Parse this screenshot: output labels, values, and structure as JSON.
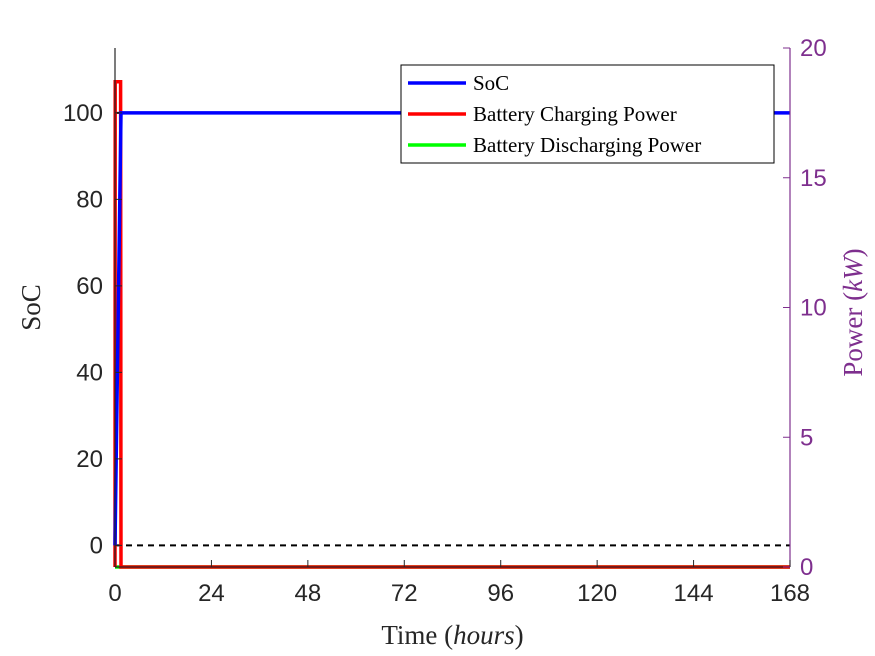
{
  "chart_data": {
    "type": "line",
    "xlabel": "Time",
    "xlabel_unit": "hours",
    "ylabel_left": "SoC",
    "ylabel_right": "Power",
    "ylabel_right_unit": "kW",
    "xlim": [
      0,
      168
    ],
    "ylim_left": [
      -5,
      115
    ],
    "ylim_right": [
      0,
      20
    ],
    "x_ticks": [
      0,
      24,
      48,
      72,
      96,
      120,
      144,
      168
    ],
    "x_tick_labels": [
      "0",
      "24",
      "48",
      "72",
      "96",
      "120",
      "144",
      "168"
    ],
    "y_left_ticks": [
      0,
      20,
      40,
      60,
      80,
      100
    ],
    "y_left_tick_labels": [
      "0",
      "20",
      "40",
      "60",
      "80",
      "100"
    ],
    "y_right_ticks": [
      0,
      5,
      10,
      15,
      20
    ],
    "y_right_tick_labels": [
      "0",
      "5",
      "10",
      "15",
      "20"
    ],
    "legend_position": "top-right",
    "grid": false,
    "series": [
      {
        "name": "SoC",
        "axis": "left",
        "color": "#0000ff",
        "x": [
          0,
          1.5,
          168
        ],
        "y": [
          0,
          100,
          100
        ]
      },
      {
        "name": "Battery Charging Power",
        "axis": "right",
        "color": "#ff0000",
        "x": [
          0,
          0.05,
          1.4,
          1.5,
          168
        ],
        "y": [
          0,
          18.7,
          18.7,
          0,
          0
        ]
      },
      {
        "name": "Battery Discharging Power",
        "axis": "right",
        "color": "#00ff00",
        "x": [
          0,
          168
        ],
        "y": [
          0,
          0
        ]
      }
    ],
    "reference_lines": [
      {
        "axis": "left",
        "y": 0,
        "style": "dashed",
        "color": "#000000"
      },
      {
        "axis": "left",
        "y": 100,
        "style": "dashed",
        "color": "#000000"
      }
    ],
    "colors": {
      "left_axis": "#262626",
      "right_axis": "#7e2f8e"
    }
  }
}
